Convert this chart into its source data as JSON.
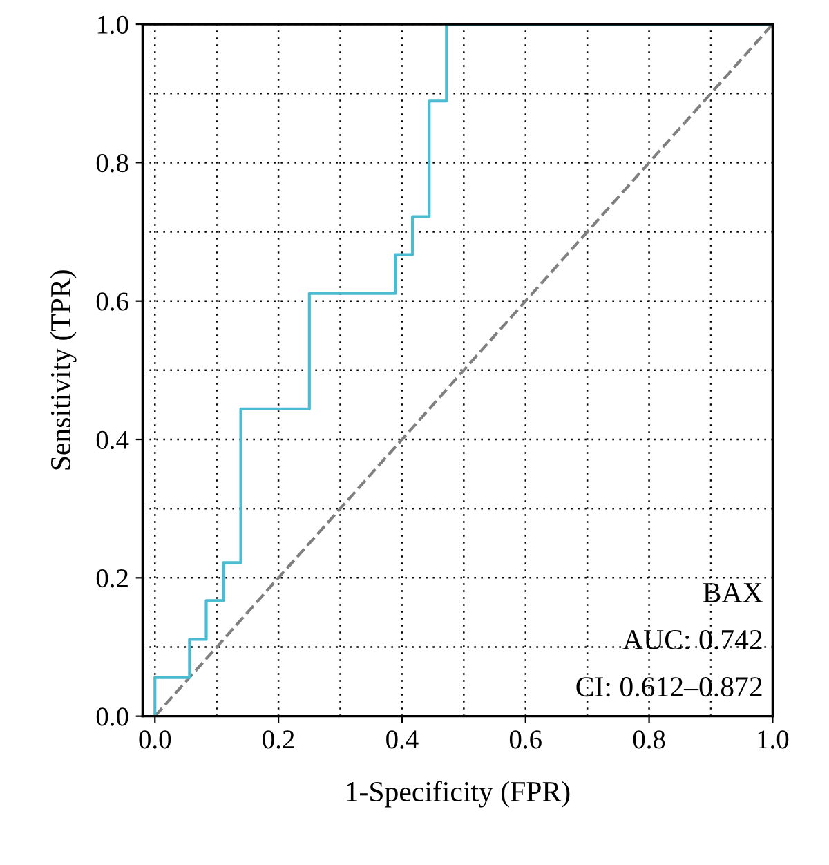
{
  "chart_data": {
    "type": "line",
    "xlabel": "1-Specificity (FPR)",
    "ylabel": "Sensitivity (TPR)",
    "xlim": [
      -0.02,
      1.0
    ],
    "ylim": [
      0.0,
      1.0
    ],
    "xticks": [
      {
        "value": 0.0,
        "label": "0.0"
      },
      {
        "value": 0.1,
        "label": null
      },
      {
        "value": 0.2,
        "label": "0.2"
      },
      {
        "value": 0.3,
        "label": null
      },
      {
        "value": 0.4,
        "label": "0.4"
      },
      {
        "value": 0.5,
        "label": null
      },
      {
        "value": 0.6,
        "label": "0.6"
      },
      {
        "value": 0.7,
        "label": null
      },
      {
        "value": 0.8,
        "label": "0.8"
      },
      {
        "value": 0.9,
        "label": null
      },
      {
        "value": 1.0,
        "label": "1.0"
      }
    ],
    "yticks": [
      {
        "value": 0.0,
        "label": "0.0"
      },
      {
        "value": 0.1,
        "label": null
      },
      {
        "value": 0.2,
        "label": "0.2"
      },
      {
        "value": 0.3,
        "label": null
      },
      {
        "value": 0.4,
        "label": "0.4"
      },
      {
        "value": 0.5,
        "label": null
      },
      {
        "value": 0.6,
        "label": "0.6"
      },
      {
        "value": 0.7,
        "label": null
      },
      {
        "value": 0.8,
        "label": "0.8"
      },
      {
        "value": 0.9,
        "label": null
      },
      {
        "value": 1.0,
        "label": "1.0"
      }
    ],
    "grid": true,
    "line_style": "solid",
    "marker": "none",
    "series": [
      {
        "color": "#808080",
        "line_style": "dashed",
        "x": [
          0,
          1
        ],
        "values": [
          0,
          1
        ]
      },
      {
        "color": "#4bbcd0",
        "x": [
          0,
          0,
          0.056,
          0.056,
          0.083,
          0.083,
          0.111,
          0.111,
          0.139,
          0.139,
          0.25,
          0.25,
          0.389,
          0.389,
          0.417,
          0.417,
          0.444,
          0.444,
          0.472,
          0.472,
          1.0
        ],
        "values": [
          0,
          0.056,
          0.056,
          0.111,
          0.111,
          0.167,
          0.167,
          0.222,
          0.222,
          0.444,
          0.444,
          0.611,
          0.611,
          0.667,
          0.667,
          0.722,
          0.722,
          0.889,
          0.889,
          1.0,
          1.0
        ]
      }
    ],
    "annotations": [
      "BAX",
      "AUC: 0.742",
      "CI: 0.612–0.872"
    ]
  }
}
